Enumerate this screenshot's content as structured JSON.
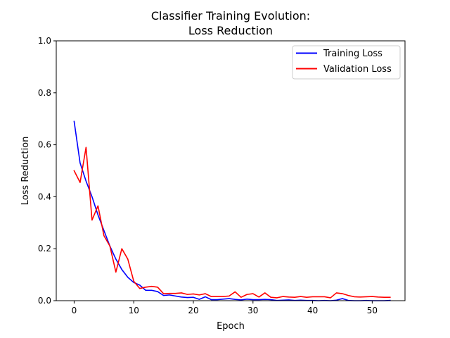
{
  "chart_data": {
    "type": "line",
    "title_lines": [
      "Classifier Training Evolution:",
      "Loss Reduction"
    ],
    "xlabel": "Epoch",
    "ylabel": "Loss Reduction",
    "xlim": [
      -3,
      55.5
    ],
    "ylim": [
      0,
      1.0
    ],
    "xticks": [
      0,
      10,
      20,
      30,
      40,
      50
    ],
    "yticks": [
      0.0,
      0.2,
      0.4,
      0.6,
      0.8,
      1.0
    ],
    "xtick_labels": [
      "0",
      "10",
      "20",
      "30",
      "40",
      "50"
    ],
    "ytick_labels": [
      "0.0",
      "0.2",
      "0.4",
      "0.6",
      "0.8",
      "1.0"
    ],
    "grid": false,
    "legend_position": "upper right",
    "x": [
      0,
      1,
      2,
      3,
      4,
      5,
      6,
      7,
      8,
      9,
      10,
      11,
      12,
      13,
      14,
      15,
      16,
      17,
      18,
      19,
      20,
      21,
      22,
      23,
      24,
      25,
      26,
      27,
      28,
      29,
      30,
      31,
      32,
      33,
      34,
      35,
      36,
      37,
      38,
      39,
      40,
      41,
      42,
      43,
      44,
      45,
      46,
      47,
      48,
      49,
      50,
      51,
      52,
      53
    ],
    "series": [
      {
        "name": "Training Loss",
        "color": "#0000ff",
        "values": [
          0.69,
          0.53,
          0.46,
          0.4,
          0.33,
          0.27,
          0.21,
          0.16,
          0.12,
          0.09,
          0.07,
          0.06,
          0.04,
          0.04,
          0.035,
          0.02,
          0.022,
          0.018,
          0.014,
          0.012,
          0.013,
          0.005,
          0.015,
          0.004,
          0.004,
          0.006,
          0.008,
          0.005,
          0.003,
          0.006,
          0.004,
          0.004,
          0.005,
          0.004,
          0.001,
          0.002,
          0.003,
          0.001,
          0.002,
          0.001,
          0.001,
          0.0,
          0.001,
          0.0,
          0.002,
          0.008,
          0.001,
          0.0,
          0.0,
          0.001,
          0.0,
          0.0,
          0.0,
          0.001
        ]
      },
      {
        "name": "Validation Loss",
        "color": "#ff0000",
        "values": [
          0.5,
          0.455,
          0.59,
          0.31,
          0.365,
          0.25,
          0.21,
          0.11,
          0.2,
          0.16,
          0.075,
          0.047,
          0.052,
          0.055,
          0.052,
          0.027,
          0.028,
          0.028,
          0.03,
          0.024,
          0.026,
          0.022,
          0.027,
          0.016,
          0.016,
          0.016,
          0.018,
          0.034,
          0.013,
          0.024,
          0.027,
          0.014,
          0.03,
          0.013,
          0.011,
          0.016,
          0.014,
          0.013,
          0.016,
          0.013,
          0.015,
          0.015,
          0.015,
          0.011,
          0.03,
          0.027,
          0.02,
          0.015,
          0.014,
          0.015,
          0.016,
          0.014,
          0.013,
          0.013
        ]
      }
    ]
  }
}
